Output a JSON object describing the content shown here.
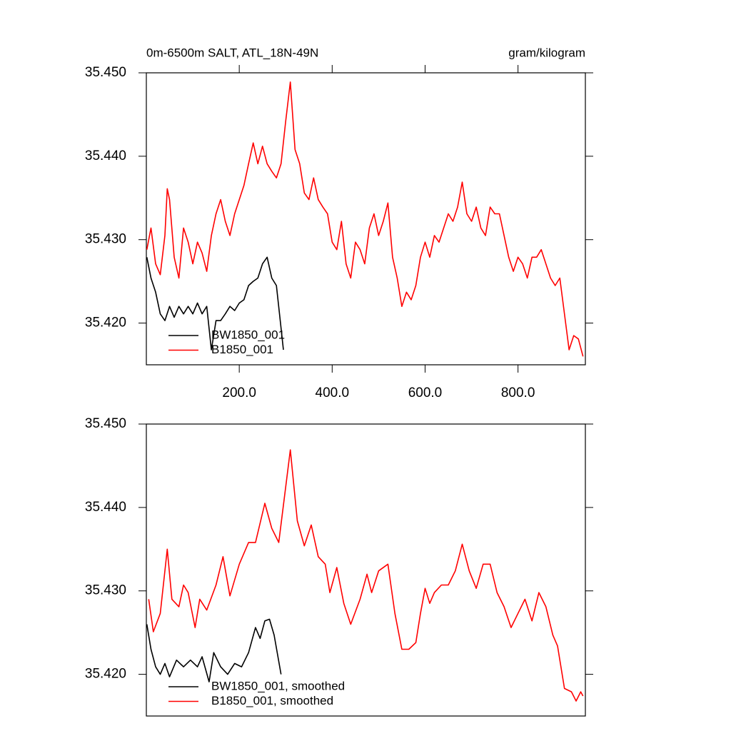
{
  "chart_data": [
    {
      "type": "line",
      "title": "0m-6500m SALT, ATL_18N-49N",
      "units": "gram/kilogram",
      "xlim": [
        0,
        945
      ],
      "ylim": [
        35.415,
        35.45
      ],
      "xticks": [
        {
          "value": 200,
          "label": "200.0"
        },
        {
          "value": 400,
          "label": "400.0"
        },
        {
          "value": 600,
          "label": "600.0"
        },
        {
          "value": 800,
          "label": "800.0"
        }
      ],
      "yticks": [
        {
          "value": 35.42,
          "label": "35.420"
        },
        {
          "value": 35.43,
          "label": "35.430"
        },
        {
          "value": 35.44,
          "label": "35.440"
        },
        {
          "value": 35.45,
          "label": "35.450"
        }
      ],
      "legend": "lower left",
      "series": [
        {
          "name": "BW1850_001",
          "color": "#000000",
          "x": [
            1,
            10,
            20,
            30,
            40,
            50,
            60,
            70,
            80,
            90,
            100,
            110,
            120,
            130,
            140,
            150,
            160,
            170,
            180,
            190,
            200,
            210,
            220,
            230,
            240,
            250,
            260,
            270,
            280,
            290,
            295
          ],
          "values": [
            35.4279,
            35.4254,
            35.4237,
            35.4211,
            35.4203,
            35.422,
            35.4207,
            35.422,
            35.4211,
            35.422,
            35.4211,
            35.4224,
            35.4211,
            35.422,
            35.4168,
            35.4203,
            35.4203,
            35.4211,
            35.422,
            35.4215,
            35.4224,
            35.4228,
            35.4245,
            35.425,
            35.4254,
            35.4271,
            35.4279,
            35.4254,
            35.4245,
            35.4194,
            35.4168
          ]
        },
        {
          "name": "B1850_001",
          "color": "#ff0000",
          "x": [
            1,
            10,
            20,
            30,
            40,
            45,
            50,
            60,
            70,
            80,
            90,
            100,
            110,
            120,
            130,
            140,
            150,
            160,
            170,
            180,
            190,
            200,
            210,
            220,
            230,
            240,
            250,
            260,
            270,
            280,
            290,
            300,
            310,
            320,
            330,
            340,
            350,
            360,
            370,
            380,
            390,
            400,
            410,
            420,
            430,
            440,
            450,
            460,
            470,
            480,
            490,
            500,
            510,
            520,
            530,
            540,
            550,
            560,
            570,
            580,
            590,
            600,
            610,
            620,
            630,
            640,
            650,
            660,
            670,
            680,
            690,
            700,
            710,
            720,
            730,
            740,
            750,
            760,
            770,
            780,
            790,
            800,
            810,
            820,
            830,
            840,
            850,
            860,
            870,
            880,
            890,
            900,
            910,
            920,
            930,
            940
          ],
          "values": [
            35.4288,
            35.4314,
            35.4271,
            35.4258,
            35.4305,
            35.4361,
            35.4348,
            35.4279,
            35.4254,
            35.4314,
            35.4297,
            35.4271,
            35.4297,
            35.4284,
            35.4262,
            35.4305,
            35.4331,
            35.4348,
            35.4322,
            35.4305,
            35.4331,
            35.4348,
            35.4365,
            35.4391,
            35.4416,
            35.4391,
            35.4412,
            35.4391,
            35.4382,
            35.4374,
            35.4391,
            35.4442,
            35.4489,
            35.4408,
            35.4391,
            35.4356,
            35.4348,
            35.4374,
            35.4348,
            35.4339,
            35.4331,
            35.4297,
            35.4288,
            35.4322,
            35.4271,
            35.4254,
            35.4297,
            35.4288,
            35.4271,
            35.4314,
            35.4331,
            35.4305,
            35.4322,
            35.4344,
            35.4279,
            35.4254,
            35.422,
            35.4237,
            35.4228,
            35.4245,
            35.4279,
            35.4297,
            35.4279,
            35.4305,
            35.4297,
            35.4314,
            35.4331,
            35.4322,
            35.4339,
            35.4369,
            35.4331,
            35.4322,
            35.4339,
            35.4314,
            35.4305,
            35.4339,
            35.4331,
            35.4331,
            35.4305,
            35.4279,
            35.4262,
            35.4279,
            35.4271,
            35.4254,
            35.4279,
            35.4279,
            35.4288,
            35.4271,
            35.4254,
            35.4245,
            35.4254,
            35.4211,
            35.4168,
            35.4185,
            35.4181,
            35.416
          ]
        }
      ]
    },
    {
      "type": "line",
      "xlim": [
        0,
        945
      ],
      "ylim": [
        35.415,
        35.45
      ],
      "yticks": [
        {
          "value": 35.42,
          "label": "35.420"
        },
        {
          "value": 35.43,
          "label": "35.430"
        },
        {
          "value": 35.44,
          "label": "35.440"
        },
        {
          "value": 35.45,
          "label": "35.450"
        }
      ],
      "legend": "lower left",
      "series": [
        {
          "name": "BW1850_001, smoothed",
          "color": "#000000",
          "x": [
            1,
            10,
            20,
            30,
            40,
            50,
            65,
            80,
            95,
            110,
            120,
            135,
            145,
            160,
            175,
            190,
            205,
            220,
            235,
            245,
            255,
            265,
            275,
            290
          ],
          "values": [
            35.426,
            35.423,
            35.4209,
            35.42,
            35.4213,
            35.4197,
            35.4217,
            35.4209,
            35.4217,
            35.4209,
            35.4221,
            35.4191,
            35.4226,
            35.4209,
            35.42,
            35.4213,
            35.4209,
            35.4226,
            35.4256,
            35.4243,
            35.4264,
            35.4266,
            35.4247,
            35.42
          ]
        },
        {
          "name": "B1850_001, smoothed",
          "color": "#ff0000",
          "x": [
            5,
            15,
            30,
            45,
            55,
            70,
            80,
            90,
            105,
            115,
            130,
            150,
            165,
            180,
            200,
            220,
            235,
            255,
            270,
            285,
            310,
            325,
            340,
            355,
            370,
            385,
            395,
            410,
            425,
            440,
            460,
            475,
            485,
            500,
            520,
            535,
            550,
            565,
            580,
            590,
            600,
            610,
            620,
            635,
            650,
            665,
            680,
            695,
            710,
            725,
            740,
            755,
            770,
            785,
            800,
            815,
            830,
            845,
            860,
            875,
            885,
            900,
            915,
            925,
            935,
            940
          ],
          "values": [
            35.429,
            35.4251,
            35.4273,
            35.435,
            35.429,
            35.4281,
            35.4307,
            35.4298,
            35.4256,
            35.429,
            35.4277,
            35.4307,
            35.4341,
            35.4294,
            35.4332,
            35.4358,
            35.4358,
            35.4405,
            35.4375,
            35.4358,
            35.4469,
            35.4384,
            35.4354,
            35.4379,
            35.4341,
            35.4332,
            35.4298,
            35.4328,
            35.4285,
            35.426,
            35.429,
            35.432,
            35.4298,
            35.4324,
            35.4332,
            35.4273,
            35.423,
            35.423,
            35.4238,
            35.4273,
            35.4303,
            35.4285,
            35.4298,
            35.4307,
            35.4307,
            35.4324,
            35.4356,
            35.4324,
            35.4303,
            35.4332,
            35.4332,
            35.4298,
            35.4281,
            35.4256,
            35.4273,
            35.429,
            35.4264,
            35.4298,
            35.4281,
            35.4247,
            35.4234,
            35.4183,
            35.4179,
            35.4168,
            35.4179,
            35.4174
          ]
        }
      ]
    }
  ]
}
